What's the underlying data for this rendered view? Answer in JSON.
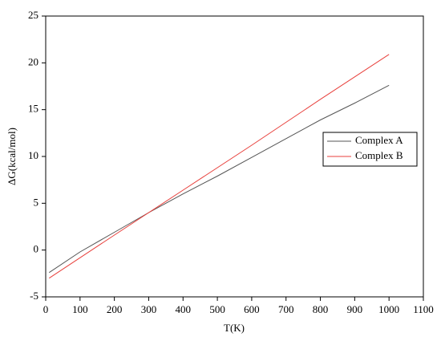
{
  "chart_data": {
    "type": "line",
    "xlabel": "T(K)",
    "ylabel": "ΔG(kcal/mol)",
    "xlim": [
      0,
      1100
    ],
    "xticks": [
      0,
      100,
      200,
      300,
      400,
      500,
      600,
      700,
      800,
      900,
      1000,
      1100
    ],
    "ylim": [
      -5,
      25
    ],
    "yticks": [
      -5,
      0,
      5,
      10,
      15,
      20,
      25
    ],
    "legend": "right",
    "series": [
      {
        "name": "Complex A",
        "color": "#555555",
        "x": [
          10,
          100,
          200,
          300,
          400,
          500,
          600,
          700,
          800,
          900,
          1000
        ],
        "values": [
          -2.4,
          -0.2,
          1.9,
          4.0,
          6.0,
          7.9,
          9.9,
          11.9,
          13.9,
          15.7,
          17.6
        ]
      },
      {
        "name": "Complex B",
        "color": "#e8403c",
        "x": [
          10,
          200,
          400,
          600,
          800,
          1000
        ],
        "values": [
          -3.0,
          1.6,
          6.4,
          11.2,
          16.1,
          20.9
        ]
      }
    ]
  }
}
